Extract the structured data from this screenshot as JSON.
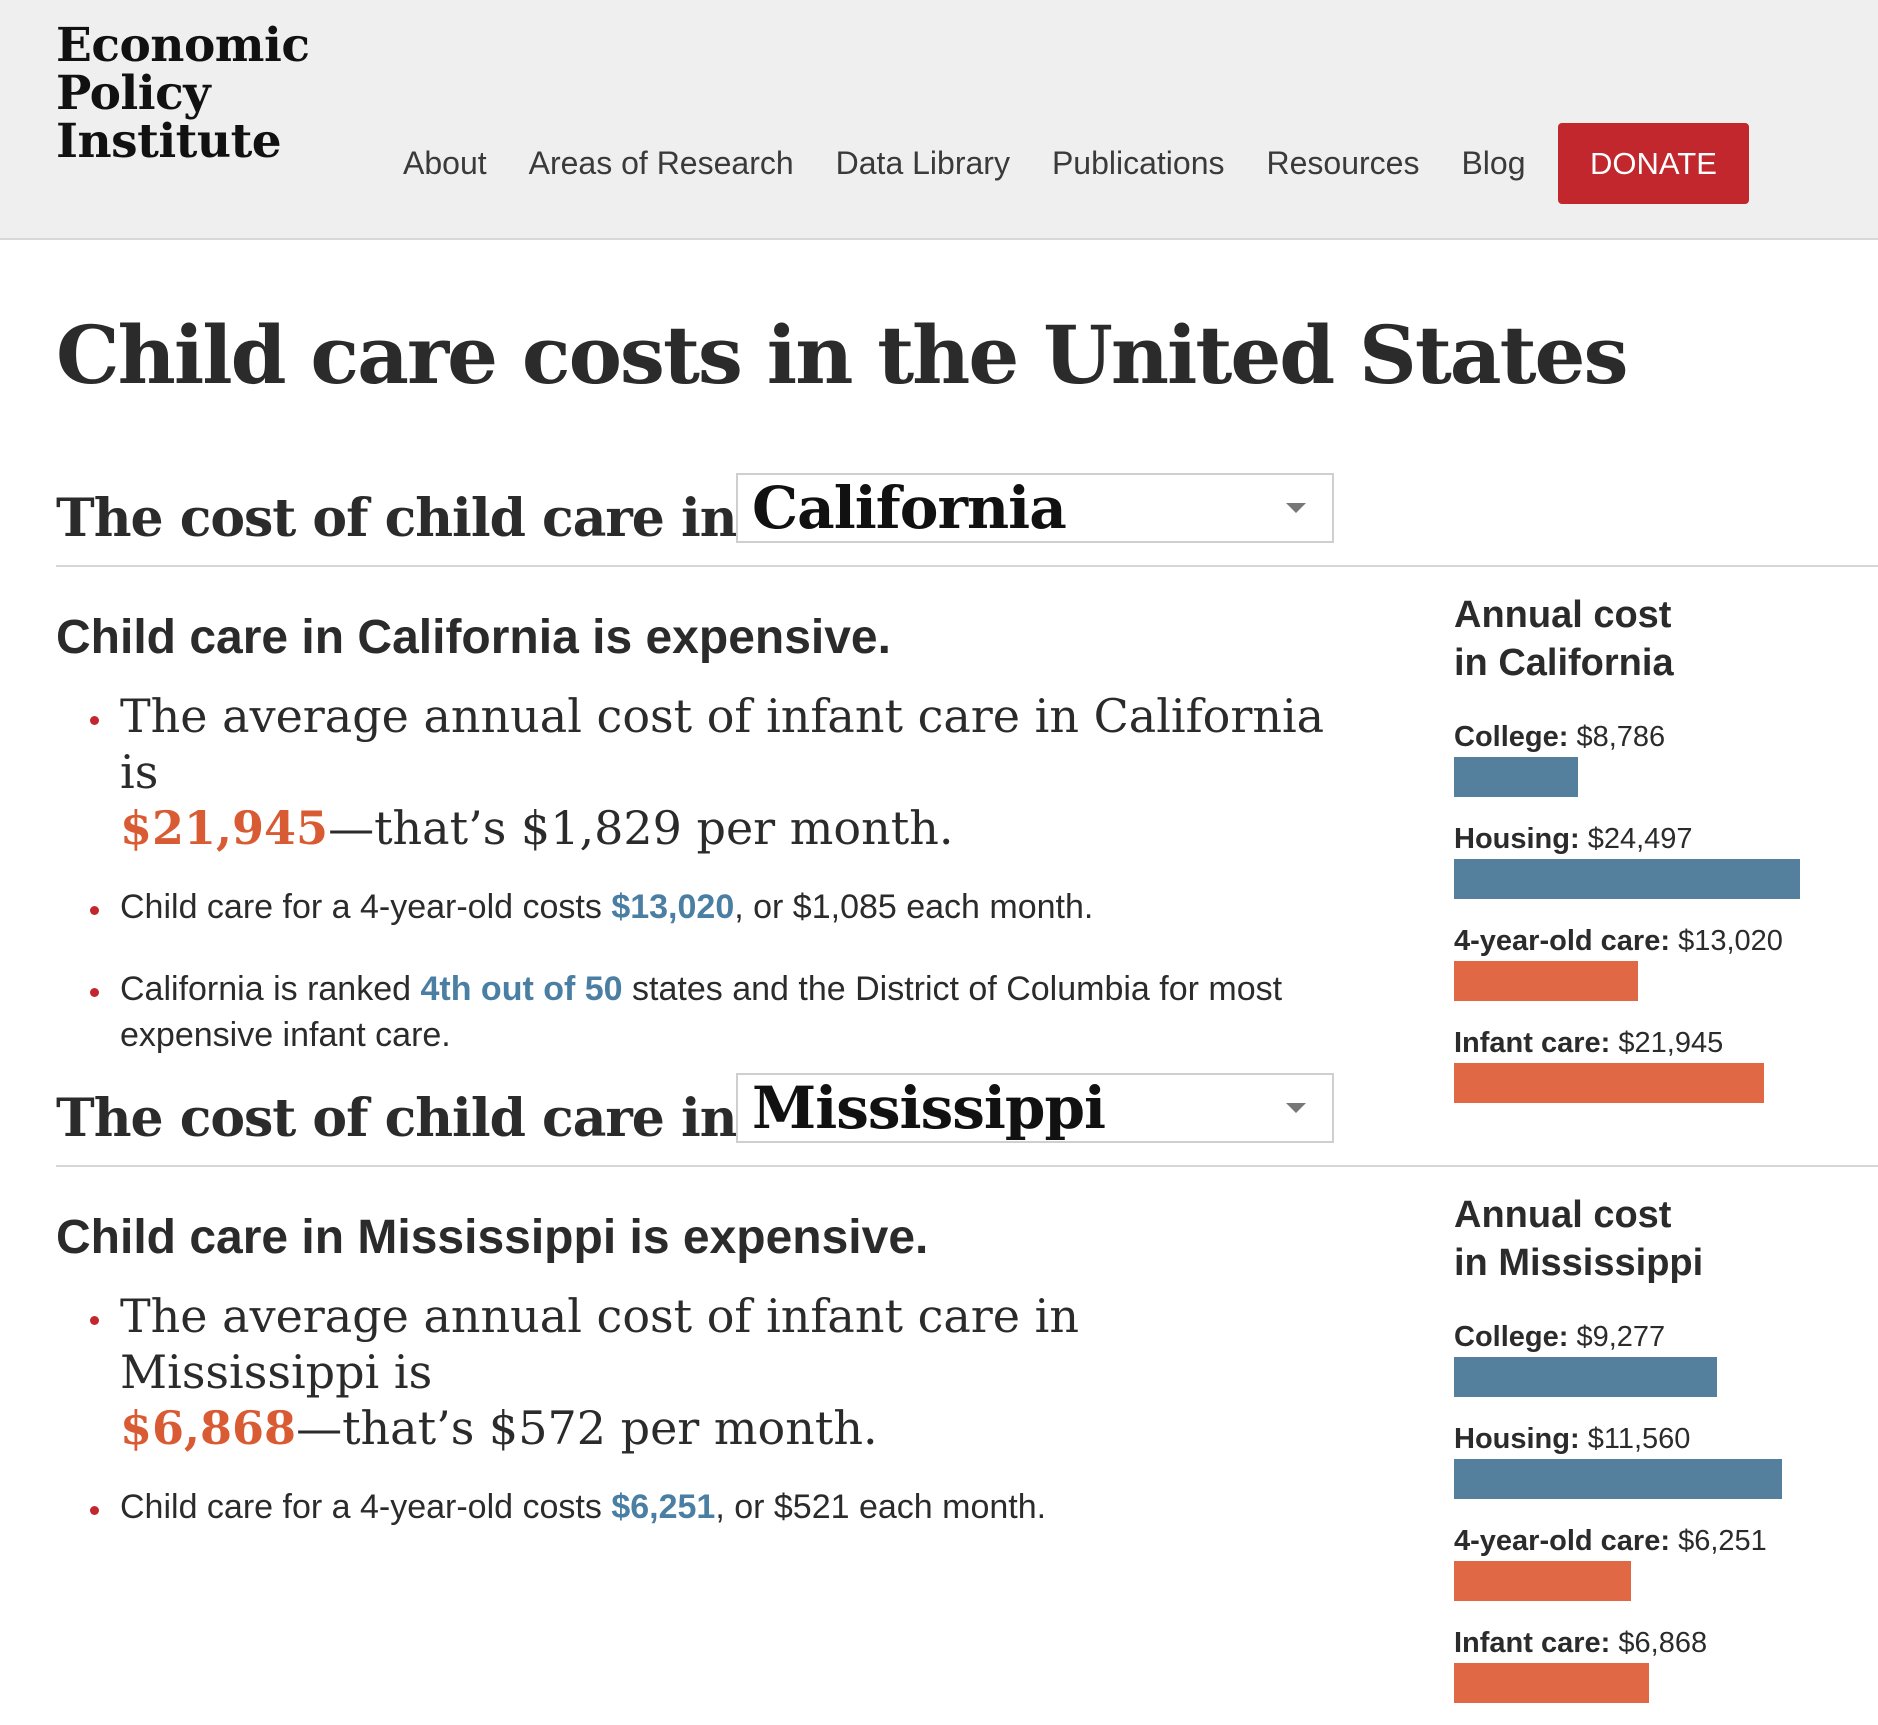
{
  "header": {
    "logo_lines": [
      "Economic",
      "Policy",
      "Institute"
    ],
    "nav": [
      "About",
      "Areas of Research",
      "Data Library",
      "Publications",
      "Resources",
      "Blog"
    ],
    "donate": "DONATE"
  },
  "page_title": "Child care costs in the United States",
  "colors": {
    "accent_red": "#c1272d",
    "orange": "#d85b33",
    "blue": "#4a7fa3",
    "bar_blue": "#547f9d",
    "bar_orange": "#e16845"
  },
  "states": [
    {
      "heading": "The cost of child care in",
      "state": "California",
      "summary": "Child care in California is expensive.",
      "b1_pre": "The average annual cost of infant care in California is",
      "b1_amount": "$21,945",
      "b1_post": "—that’s $1,829 per month.",
      "b2_pre": "Child care for a 4-year-old costs",
      "b2_amount": "$13,020",
      "b2_post": ", or $1,085 each month.",
      "b3_pre": "California is ranked",
      "b3_rank": "4th out of 50",
      "b3_post": "states and the District of Columbia for most expensive infant care.",
      "sidebar_title_line1": "Annual cost",
      "sidebar_title_line2": "in California",
      "bars": [
        {
          "label": "College:",
          "amount": "$8,786",
          "value": 8786,
          "color": "blue"
        },
        {
          "label": "Housing:",
          "amount": "$24,497",
          "value": 24497,
          "color": "blue"
        },
        {
          "label": "4-year-old care:",
          "amount": "$13,020",
          "value": 13020,
          "color": "orange"
        },
        {
          "label": "Infant care:",
          "amount": "$21,945",
          "value": 21945,
          "color": "orange"
        }
      ]
    },
    {
      "heading": "The cost of child care in",
      "state": "Mississippi",
      "summary": "Child care in Mississippi is expensive.",
      "b1_pre": "The average annual cost of infant care in Mississippi is",
      "b1_amount": "$6,868",
      "b1_post": "—that’s $572 per month.",
      "b2_pre": "Child care for a 4-year-old costs",
      "b2_amount": "$6,251",
      "b2_post": ", or $521 each month.",
      "sidebar_title_line1": "Annual cost",
      "sidebar_title_line2": "in Mississippi",
      "bars": [
        {
          "label": "College:",
          "amount": "$9,277",
          "value": 9277,
          "color": "blue"
        },
        {
          "label": "Housing:",
          "amount": "$11,560",
          "value": 11560,
          "color": "blue"
        },
        {
          "label": "4-year-old care:",
          "amount": "$6,251",
          "value": 6251,
          "color": "orange"
        },
        {
          "label": "Infant care:",
          "amount": "$6,868",
          "value": 6868,
          "color": "orange"
        }
      ]
    }
  ]
}
